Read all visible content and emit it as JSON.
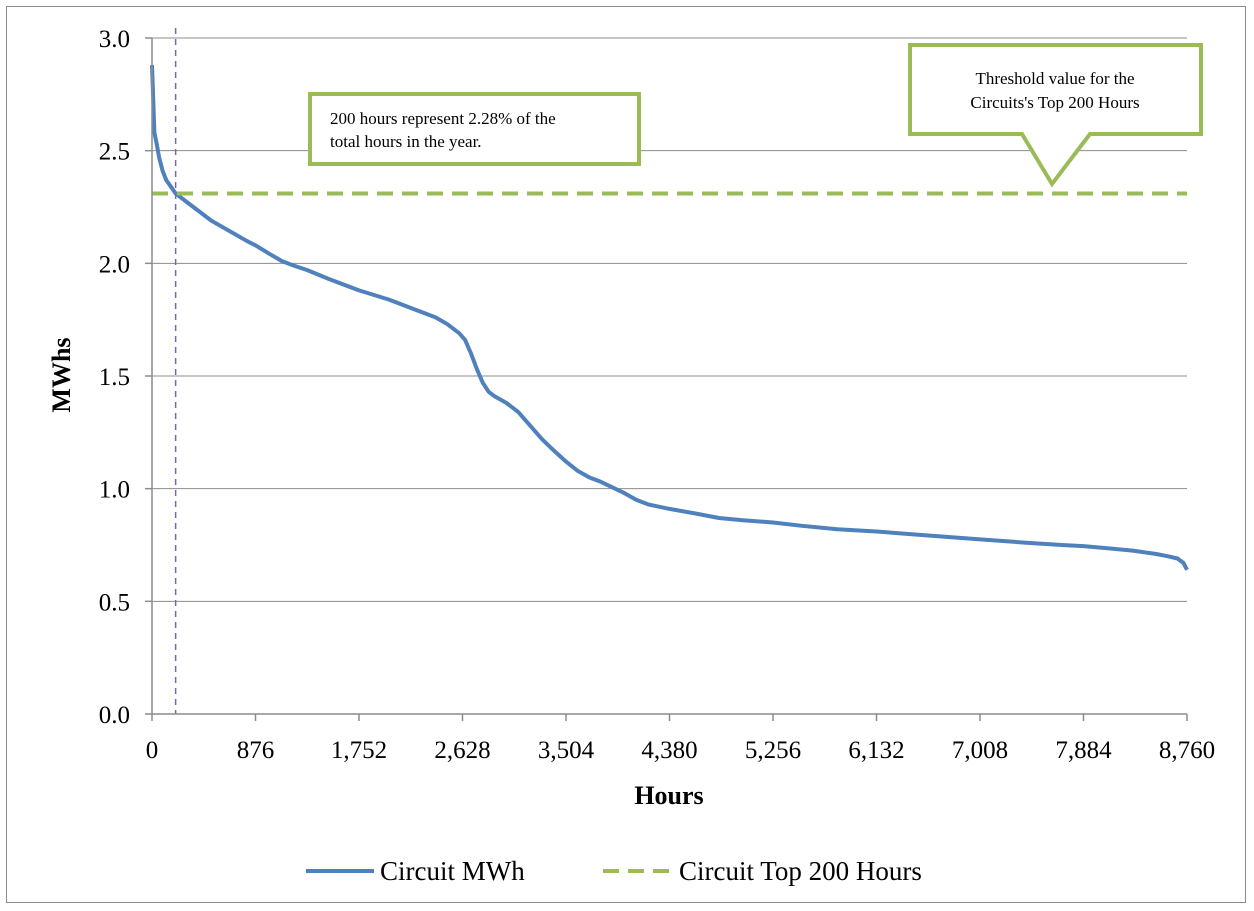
{
  "chart_data": {
    "type": "line",
    "title": "",
    "xlabel": "Hours",
    "ylabel": "MWhs",
    "xlim": [
      0,
      8760
    ],
    "ylim": [
      0,
      3.0
    ],
    "x_ticks": [
      "0",
      "876",
      "1,752",
      "2,628",
      "3,504",
      "4,380",
      "5,256",
      "6,132",
      "7,008",
      "7,884",
      "8,760"
    ],
    "y_ticks": [
      "0.0",
      "0.5",
      "1.0",
      "1.5",
      "2.0",
      "2.5",
      "3.0"
    ],
    "grid": "horizontal",
    "legend_position": "bottom",
    "series": [
      {
        "name": "Circuit MWh",
        "style": "solid",
        "color": "#4f81bd",
        "x": [
          0,
          20,
          40,
          60,
          90,
          120,
          160,
          200,
          250,
          300,
          400,
          500,
          600,
          700,
          800,
          876,
          1000,
          1100,
          1200,
          1314,
          1500,
          1752,
          2000,
          2200,
          2400,
          2500,
          2600,
          2650,
          2700,
          2750,
          2800,
          2850,
          2900,
          3000,
          3100,
          3150,
          3200,
          3300,
          3400,
          3504,
          3600,
          3700,
          3800,
          4000,
          4100,
          4200,
          4380,
          4600,
          4800,
          5000,
          5256,
          5500,
          5800,
          6132,
          6500,
          7008,
          7400,
          7700,
          7884,
          8100,
          8300,
          8500,
          8600,
          8680,
          8730,
          8760
        ],
        "y": [
          2.88,
          2.58,
          2.53,
          2.47,
          2.41,
          2.37,
          2.34,
          2.31,
          2.29,
          2.27,
          2.23,
          2.19,
          2.16,
          2.13,
          2.1,
          2.08,
          2.04,
          2.01,
          1.99,
          1.97,
          1.93,
          1.88,
          1.84,
          1.8,
          1.76,
          1.73,
          1.69,
          1.66,
          1.6,
          1.53,
          1.47,
          1.43,
          1.41,
          1.38,
          1.34,
          1.31,
          1.28,
          1.22,
          1.17,
          1.12,
          1.08,
          1.05,
          1.03,
          0.98,
          0.95,
          0.93,
          0.91,
          0.89,
          0.87,
          0.86,
          0.85,
          0.835,
          0.82,
          0.81,
          0.795,
          0.775,
          0.76,
          0.75,
          0.745,
          0.735,
          0.725,
          0.71,
          0.7,
          0.69,
          0.67,
          0.64
        ]
      },
      {
        "name": "Circuit Top 200 Hours",
        "style": "dashed",
        "color": "#9bbb59",
        "x": [
          0,
          8760
        ],
        "y": [
          2.31,
          2.31
        ]
      }
    ],
    "reference_lines": [
      {
        "axis": "x",
        "value": 200,
        "style": "dashed",
        "color": "#8064a2"
      }
    ],
    "annotations": [
      {
        "text_lines": [
          "200 hours represent 2.28% of the",
          "total hours in the year."
        ]
      },
      {
        "text_lines": [
          "Threshold value  for the",
          "Circuits's Top 200 Hours"
        ]
      }
    ]
  }
}
